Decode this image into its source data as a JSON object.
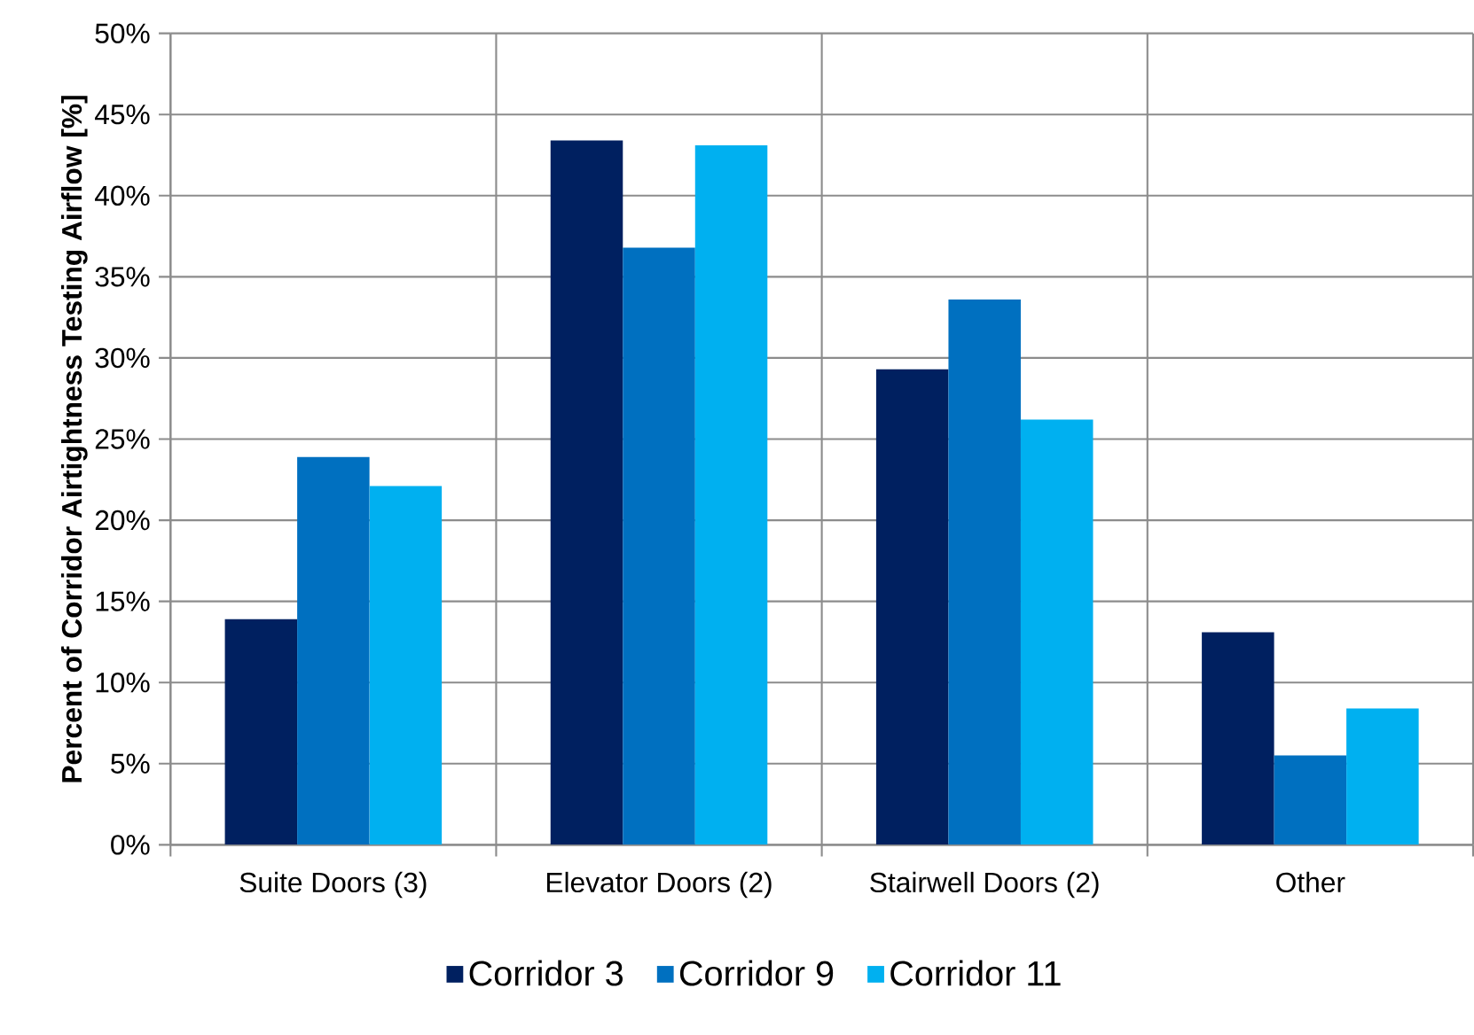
{
  "chart_data": {
    "type": "bar",
    "ylabel": "Percent of Corridor Airtightness Testing Airflow [%]",
    "categories": [
      "Suite Doors (3)",
      "Elevator Doors (2)",
      "Stairwell Doors (2)",
      "Other"
    ],
    "series": [
      {
        "name": "Corridor 3",
        "color": "#002060",
        "values": [
          13.9,
          43.4,
          29.3,
          13.1
        ]
      },
      {
        "name": "Corridor 9",
        "color": "#0070c0",
        "values": [
          23.9,
          36.8,
          33.6,
          5.5
        ]
      },
      {
        "name": "Corridor 11",
        "color": "#00b0f0",
        "values": [
          22.1,
          43.1,
          26.2,
          8.4
        ]
      }
    ],
    "ylim": [
      0,
      50
    ],
    "yticks": [
      {
        "value": 0,
        "label": "0%"
      },
      {
        "value": 5,
        "label": "5%"
      },
      {
        "value": 10,
        "label": "10%"
      },
      {
        "value": 15,
        "label": "15%"
      },
      {
        "value": 20,
        "label": "20%"
      },
      {
        "value": 25,
        "label": "25%"
      },
      {
        "value": 30,
        "label": "30%"
      },
      {
        "value": 35,
        "label": "35%"
      },
      {
        "value": 40,
        "label": "40%"
      },
      {
        "value": 45,
        "label": "45%"
      },
      {
        "value": 50,
        "label": "50%"
      }
    ],
    "grid": true,
    "legend": "bottom"
  }
}
